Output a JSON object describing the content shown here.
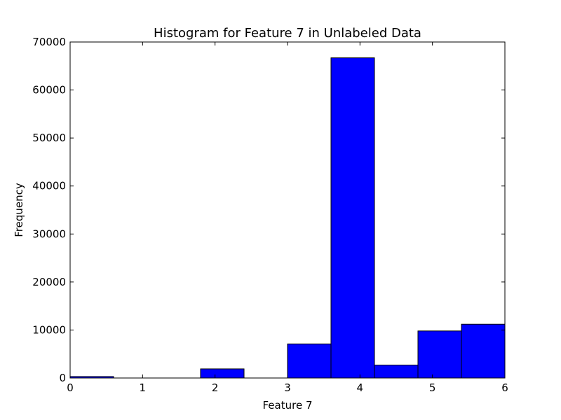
{
  "chart_data": {
    "type": "bar",
    "title": "Histogram for Feature 7 in Unlabeled Data",
    "xlabel": "Feature 7",
    "ylabel": "Frequency",
    "xlim": [
      0,
      6
    ],
    "ylim": [
      0,
      70000
    ],
    "xticks": [
      "0",
      "1",
      "2",
      "3",
      "4",
      "5",
      "6"
    ],
    "yticks": [
      "0",
      "10000",
      "20000",
      "30000",
      "40000",
      "50000",
      "60000",
      "70000"
    ],
    "bar_color": "#0000ff",
    "grid": false,
    "bins": [
      {
        "x0": 0.0,
        "x1": 0.6,
        "value": 300
      },
      {
        "x0": 0.6,
        "x1": 1.2,
        "value": 0
      },
      {
        "x0": 1.2,
        "x1": 1.8,
        "value": 0
      },
      {
        "x0": 1.8,
        "x1": 2.4,
        "value": 1900
      },
      {
        "x0": 2.4,
        "x1": 3.0,
        "value": 0
      },
      {
        "x0": 3.0,
        "x1": 3.6,
        "value": 7100
      },
      {
        "x0": 3.6,
        "x1": 4.2,
        "value": 66700
      },
      {
        "x0": 4.2,
        "x1": 4.8,
        "value": 2700
      },
      {
        "x0": 4.8,
        "x1": 5.4,
        "value": 9800
      },
      {
        "x0": 5.4,
        "x1": 6.0,
        "value": 11200
      }
    ]
  }
}
